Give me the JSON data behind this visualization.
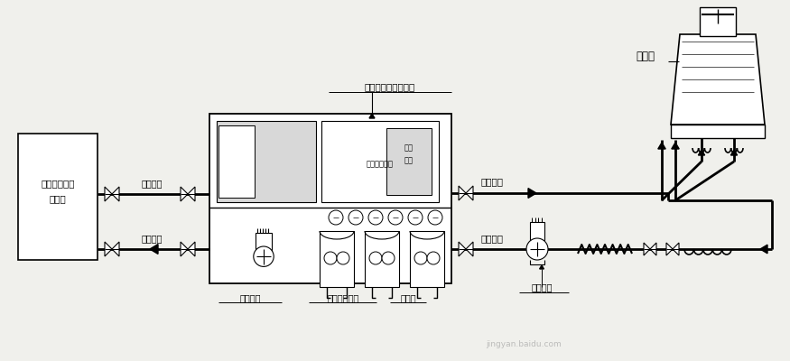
{
  "bg_color": "#f0f0ec",
  "line_color": "#000000",
  "labels": {
    "workshop_line1": "车间换热设备",
    "workshop_line2": "密闭型",
    "chilled_water_return": "冷冻水回",
    "chilled_water_out": "冷冻水出",
    "chiller_label": "水箱式水冷式冷水机",
    "evaporator": "水箱式蒸发器",
    "control_line1": "控制",
    "control_line2": "电箱",
    "chilled_pump": "冷冻水泵",
    "condenser": "壳管式冷凝器",
    "compressor": "压缩机",
    "cooling_water_out": "冷却水出",
    "cooling_water_in": "冷却水入",
    "cooling_pump": "冷却水泵",
    "cooling_tower": "冷却塔"
  },
  "watermark": "jingyan.baidu.com"
}
